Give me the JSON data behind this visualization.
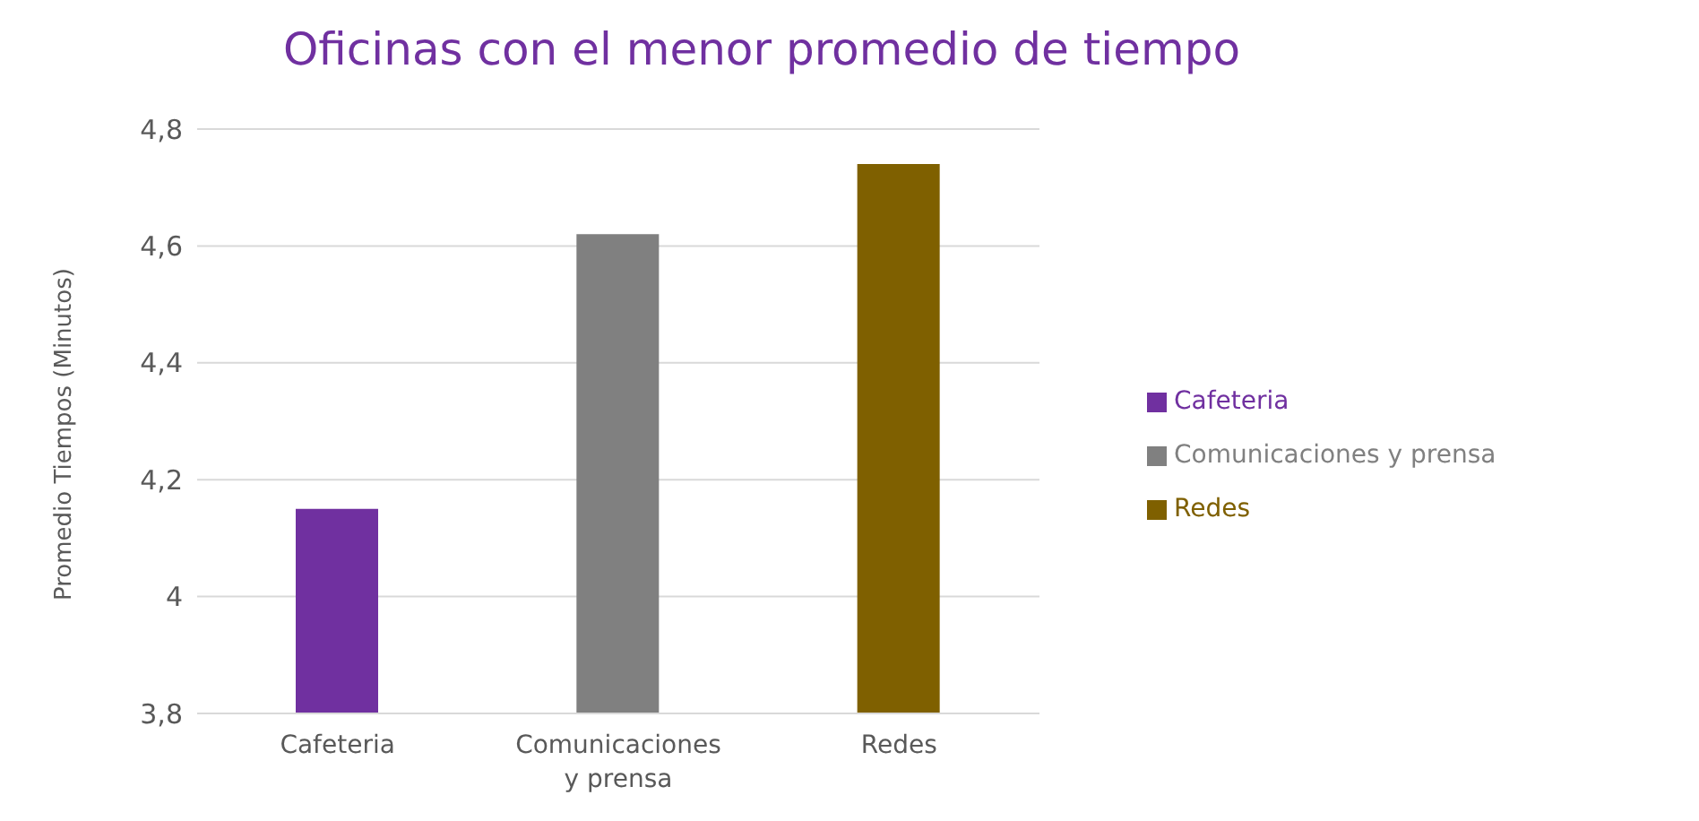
{
  "chart_data": {
    "type": "bar",
    "title": "Oficinas con el menor promedio de tiempo",
    "ylabel": "Promedio Tiempos (Minutos)",
    "categories": [
      "Cafeteria",
      "Comunicaciones y prensa",
      "Redes"
    ],
    "series": [
      {
        "name": "Cafeteria",
        "color": "#7030a0",
        "values": [
          4.15,
          null,
          null
        ]
      },
      {
        "name": "Comunicaciones y prensa",
        "color": "#808080",
        "values": [
          null,
          4.62,
          null
        ]
      },
      {
        "name": "Redes",
        "color": "#7f6000",
        "values": [
          null,
          null,
          4.74
        ]
      }
    ],
    "ylim": [
      3.8,
      4.8
    ],
    "yticks": [
      {
        "value": 3.8,
        "label": "3,8"
      },
      4,
      {
        "value": 4.2,
        "label": "4,2"
      },
      {
        "value": 4.4,
        "label": "4,4"
      },
      {
        "value": 4.6,
        "label": "4,6"
      },
      {
        "value": 4.8,
        "label": "4,8"
      }
    ],
    "grid": "y",
    "legend": "right"
  }
}
